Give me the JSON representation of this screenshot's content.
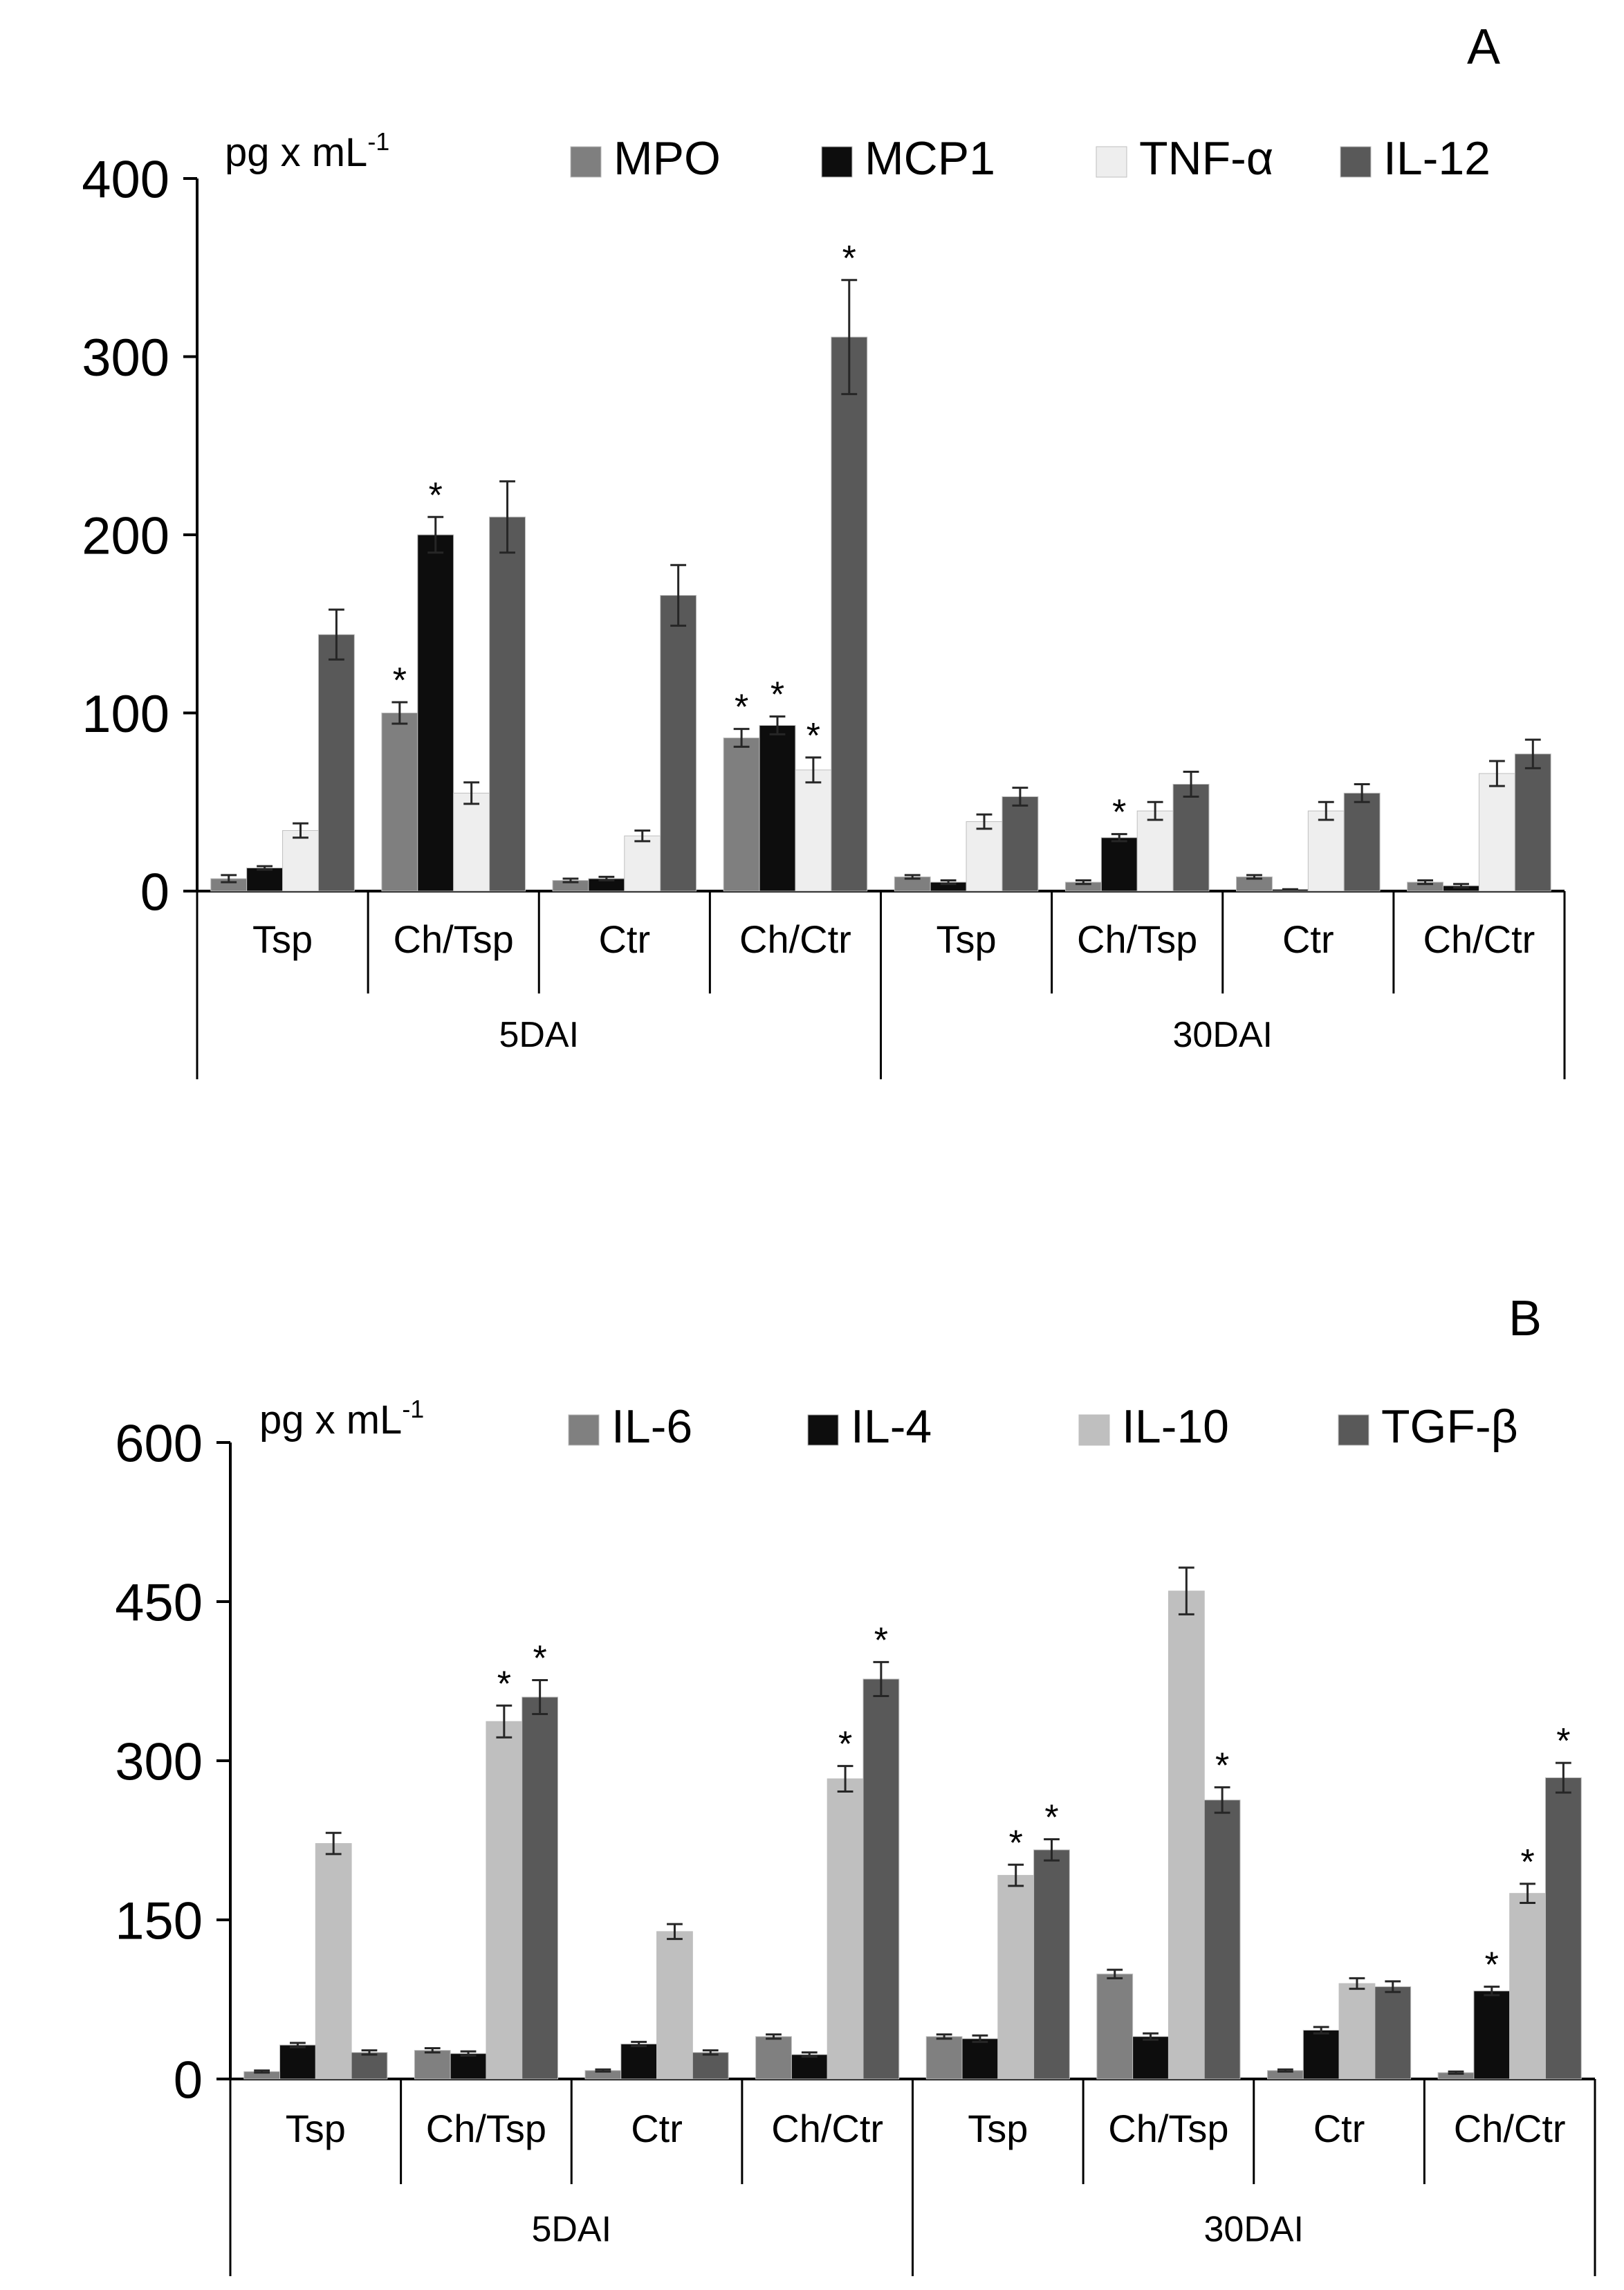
{
  "chart_data": [
    {
      "type": "bar",
      "panel_label": "A",
      "y_unit_main": "pg x mL",
      "y_unit_exp": "-1",
      "ylim": [
        0,
        400
      ],
      "yticks": [
        "0",
        "100",
        "200",
        "300",
        "400"
      ],
      "ytick_values": [
        0,
        100,
        200,
        300,
        400
      ],
      "groups": [
        "5DAI",
        "30DAI"
      ],
      "categories": [
        "Tsp",
        "Ch/Tsp",
        "Ctr",
        "Ch/Ctr",
        "Tsp",
        "Ch/Tsp",
        "Ctr",
        "Ch/Ctr"
      ],
      "series": [
        {
          "name": "MPO",
          "color": "#7f7f7f",
          "values": [
            7,
            100,
            6,
            86,
            8,
            5,
            8,
            5
          ],
          "errors": [
            2,
            6,
            1,
            5,
            1,
            1,
            1,
            1
          ],
          "sig": [
            false,
            true,
            false,
            true,
            false,
            false,
            false,
            false
          ]
        },
        {
          "name": "MCP1",
          "color": "#0d0d0d",
          "values": [
            13,
            200,
            7,
            93,
            5,
            30,
            1,
            3
          ],
          "errors": [
            1,
            10,
            1,
            5,
            1,
            2,
            0,
            1
          ],
          "sig": [
            false,
            true,
            false,
            true,
            false,
            true,
            false,
            false
          ]
        },
        {
          "name": "TNF-α",
          "color": "#eeeeee",
          "values": [
            34,
            55,
            31,
            68,
            39,
            45,
            45,
            66
          ],
          "errors": [
            4,
            6,
            3,
            7,
            4,
            5,
            5,
            7
          ],
          "sig": [
            false,
            false,
            false,
            true,
            false,
            false,
            false,
            false
          ]
        },
        {
          "name": "IL-12",
          "color": "#595959",
          "values": [
            144,
            210,
            166,
            311,
            53,
            60,
            55,
            77
          ],
          "errors": [
            14,
            20,
            17,
            32,
            5,
            7,
            5,
            8
          ],
          "sig": [
            false,
            false,
            false,
            true,
            false,
            false,
            false,
            false
          ]
        }
      ],
      "sig_mark": "*"
    },
    {
      "type": "bar",
      "panel_label": "B",
      "y_unit_main": "pg x mL",
      "y_unit_exp": "-1",
      "ylim": [
        0,
        600
      ],
      "yticks": [
        "0",
        "150",
        "300",
        "450",
        "600"
      ],
      "ytick_values": [
        0,
        150,
        300,
        450,
        600
      ],
      "groups": [
        "5DAI",
        "30DAI"
      ],
      "categories": [
        "Tsp",
        "Ch/Tsp",
        "Ctr",
        "Ch/Ctr",
        "Tsp",
        "Ch/Tsp",
        "Ctr",
        "Ch/Ctr"
      ],
      "series": [
        {
          "name": "IL-6",
          "color": "#808080",
          "values": [
            7,
            27,
            8,
            40,
            40,
            99,
            8,
            6
          ],
          "errors": [
            1,
            2,
            1,
            2,
            2,
            4,
            1,
            1
          ],
          "sig": [
            false,
            false,
            false,
            false,
            false,
            false,
            false,
            false
          ]
        },
        {
          "name": "IL-4",
          "color": "#0d0d0d",
          "values": [
            32,
            24,
            33,
            23,
            38,
            40,
            46,
            83
          ],
          "errors": [
            2,
            2,
            2,
            2,
            3,
            3,
            3,
            4
          ],
          "sig": [
            false,
            false,
            false,
            false,
            false,
            false,
            false,
            true
          ]
        },
        {
          "name": "IL-10",
          "color": "#bfbfbf",
          "values": [
            222,
            337,
            139,
            283,
            192,
            460,
            90,
            175
          ],
          "errors": [
            10,
            15,
            7,
            12,
            10,
            22,
            5,
            9
          ],
          "sig": [
            false,
            true,
            false,
            true,
            true,
            false,
            false,
            true
          ]
        },
        {
          "name": "TGF-β",
          "color": "#595959",
          "values": [
            25,
            360,
            25,
            377,
            216,
            263,
            87,
            284
          ],
          "errors": [
            2,
            16,
            2,
            16,
            10,
            12,
            5,
            14
          ],
          "sig": [
            false,
            true,
            false,
            true,
            true,
            true,
            false,
            true
          ]
        }
      ],
      "sig_mark": "*"
    }
  ]
}
